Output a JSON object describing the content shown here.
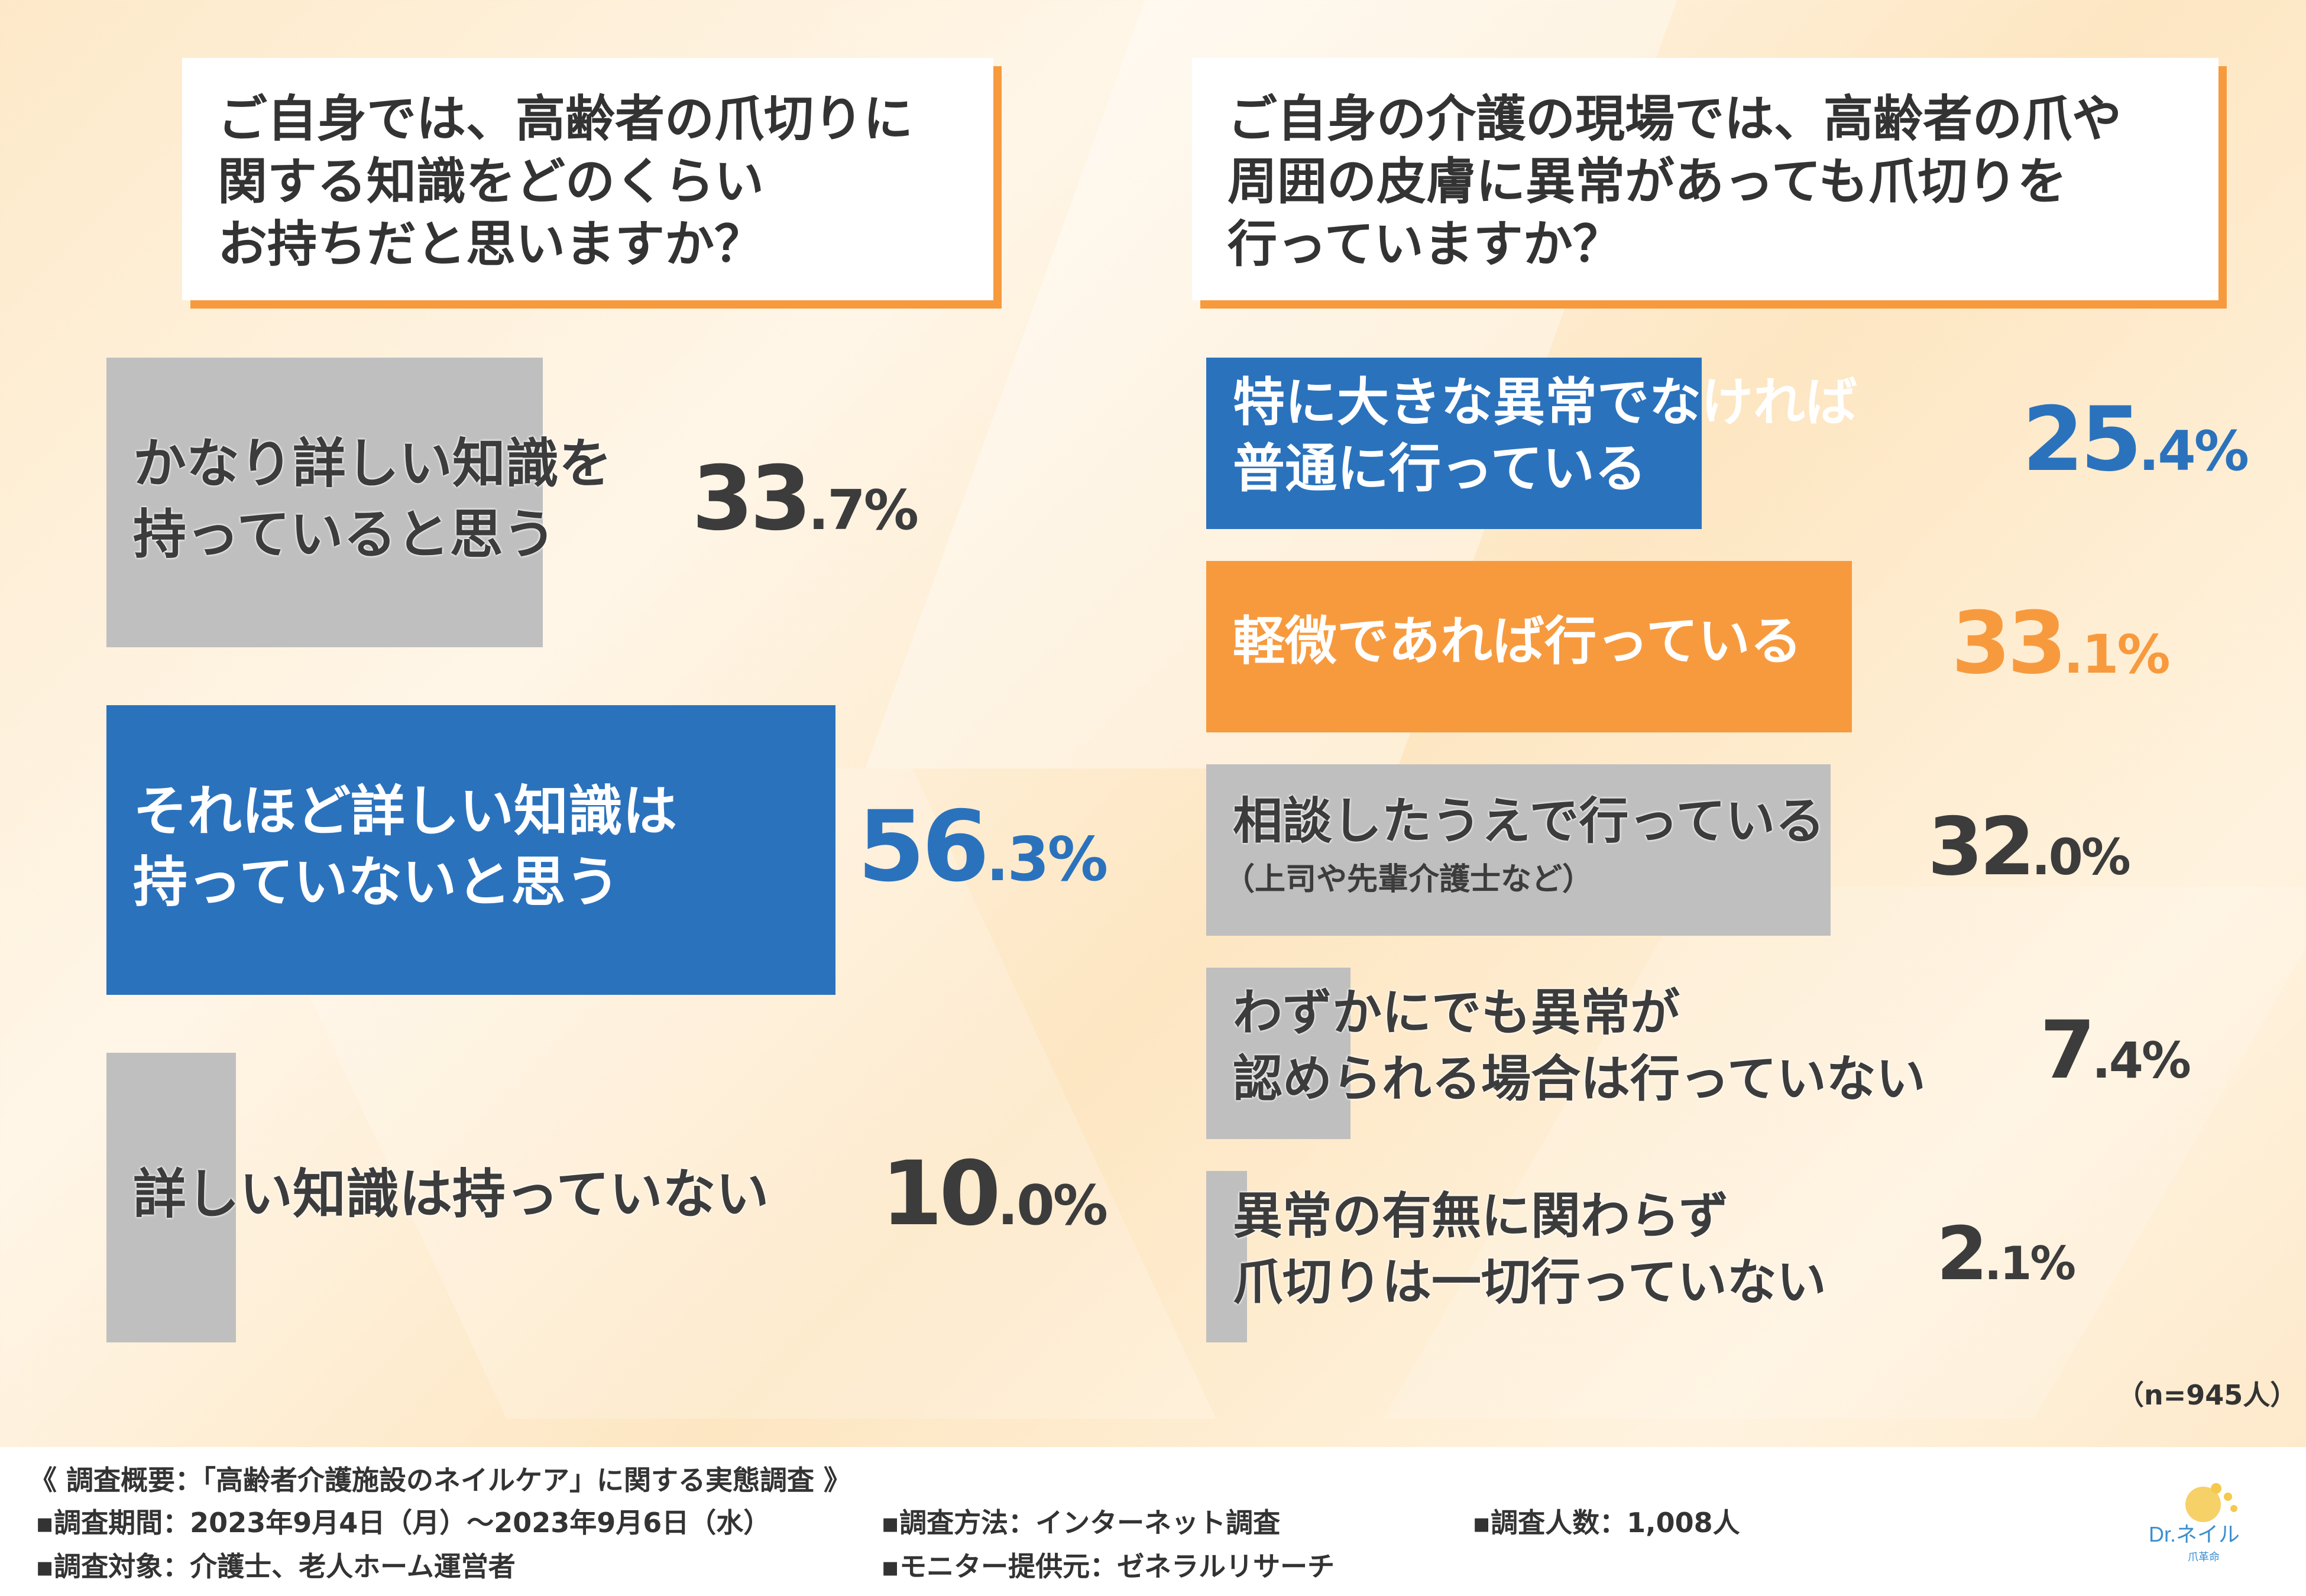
{
  "left_question": "ご自身では、高齢者の爪切りに\n関する知識をどのくらい\nお持ちだと思いますか？",
  "right_question": "ご自身の介護の現場では、高齢者の爪や\n周囲の皮膚に異常があっても爪切りを\n行っていますか？",
  "sample_note": "（n=945人）",
  "colors": {
    "gray": "#bfbfbf",
    "blue": "#2b72bd",
    "orange": "#f79a3e",
    "text": "#3c3c3c"
  },
  "chart_data": [
    {
      "type": "bar",
      "orientation": "horizontal",
      "unit": "%",
      "categories": [
        "かなり詳しい知識を\n持っていると思う",
        "それほど詳しい知識は\n持っていないと思う",
        "詳しい知識は持っていない"
      ],
      "values": [
        33.7,
        56.3,
        10.0
      ],
      "labels": [
        "33.7%",
        "56.3%",
        "10.0%"
      ],
      "highlight": [
        "gray",
        "blue",
        "gray"
      ]
    },
    {
      "type": "bar",
      "orientation": "horizontal",
      "unit": "%",
      "categories": [
        "特に大きな異常でなければ\n普通に行っている",
        "軽微であれば行っている",
        "相談したうえで行っている",
        "わずかにでも異常が\n認められる場合は行っていない",
        "異常の有無に関わらず\n爪切りは一切行っていない"
      ],
      "subtitles": [
        "",
        "",
        "（上司や先輩介護士など）",
        "",
        ""
      ],
      "values": [
        25.4,
        33.1,
        32.0,
        7.4,
        2.1
      ],
      "labels": [
        "25.4%",
        "33.1%",
        "32.0%",
        "7.4%",
        "2.1%"
      ],
      "highlight": [
        "blue",
        "orange",
        "gray",
        "gray",
        "gray"
      ]
    }
  ],
  "footer": {
    "title": "《 調査概要：「高齢者介護施設のネイルケア」に関する実態調査 》",
    "period": "▪調査期間：2023年9月4日（月）～2023年9月6日（水）",
    "method": "▪調査方法：インターネット調査",
    "count": "▪調査人数：1,008人",
    "target": "▪調査対象：介護士、老人ホーム運営者",
    "provider": "▪モニター提供元：ゼネラルリサーチ"
  },
  "logo": {
    "text": "Dr.ネイル",
    "sub": "爪革命"
  }
}
